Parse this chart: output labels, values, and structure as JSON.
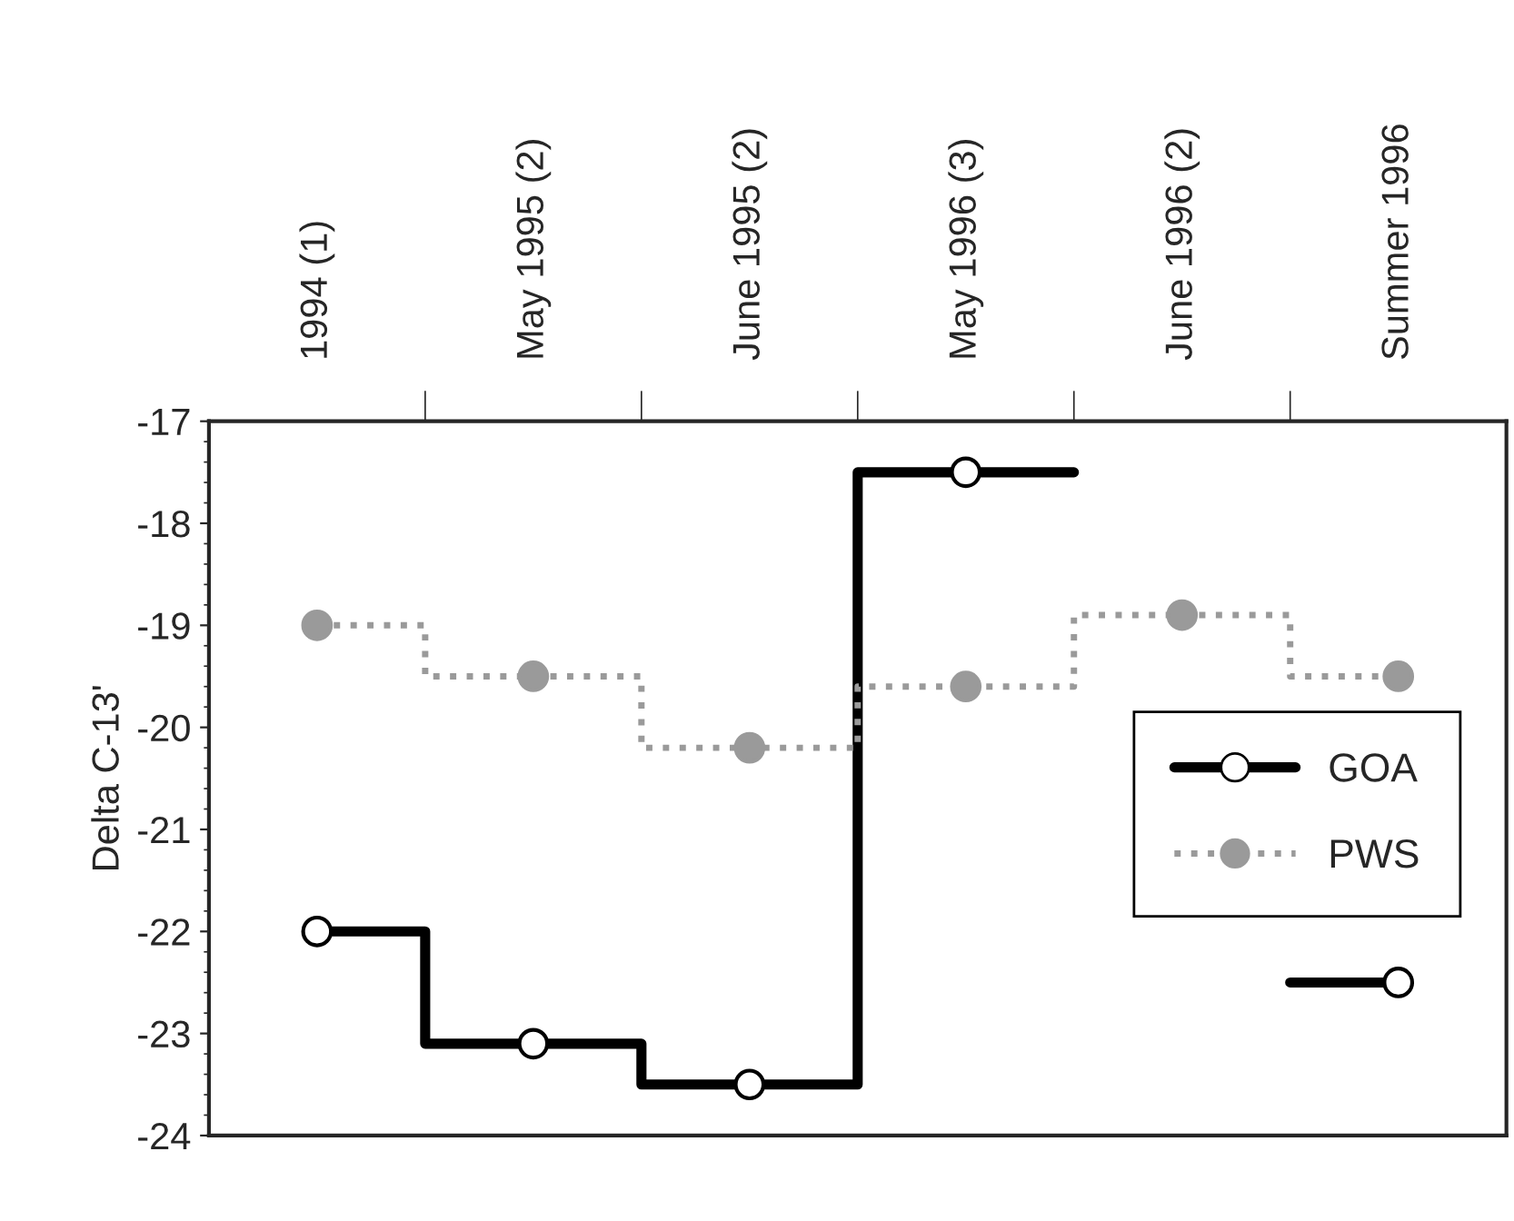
{
  "chart_data": {
    "type": "step",
    "ylabel": "Delta C-13'",
    "categories": [
      "1994 (1)",
      "May 1995 (2)",
      "June 1995 (2)",
      "May 1996 (3)",
      "June 1996 (2)",
      "Summer 1996"
    ],
    "ylim": [
      -24,
      -17
    ],
    "yticks": [
      -24,
      -23,
      -22,
      -21,
      -20,
      -19,
      -18,
      -17
    ],
    "marker": "circle",
    "grid": false,
    "legend": "right",
    "series": [
      {
        "name": "GOA",
        "color": "#000000",
        "line_style": "solid",
        "values": [
          -22,
          -23.1,
          -23.5,
          -17.5,
          null,
          -22.5
        ]
      },
      {
        "name": "PWS",
        "color": "#9a9a9a",
        "line_style": "dotted",
        "values": [
          -19,
          -19.5,
          -20.2,
          -19.6,
          -18.9,
          -19.5
        ]
      }
    ]
  }
}
